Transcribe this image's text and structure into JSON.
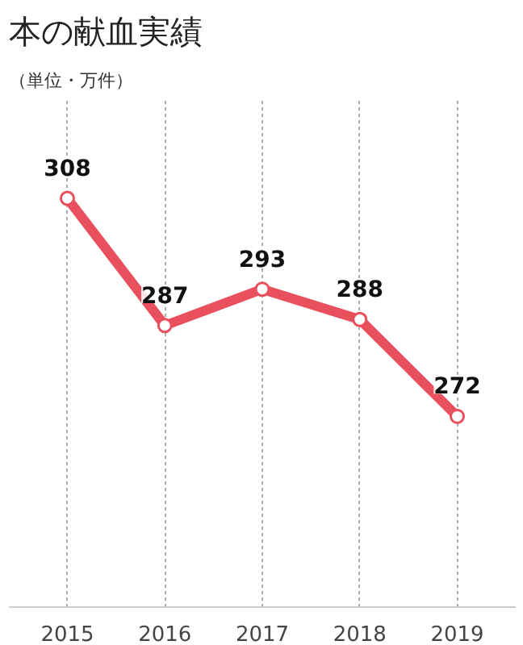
{
  "chart_data": {
    "type": "line",
    "title": "本の献血実績",
    "subtitle": "（単位・万件）",
    "categories": [
      "2015",
      "2016",
      "2017",
      "2018",
      "2019"
    ],
    "series": [
      {
        "color": "#e9505e",
        "values": [
          308,
          287,
          293,
          288,
          272
        ]
      }
    ],
    "data_labels": true,
    "marker": "circle",
    "line_style": "solid",
    "grid": "x"
  }
}
